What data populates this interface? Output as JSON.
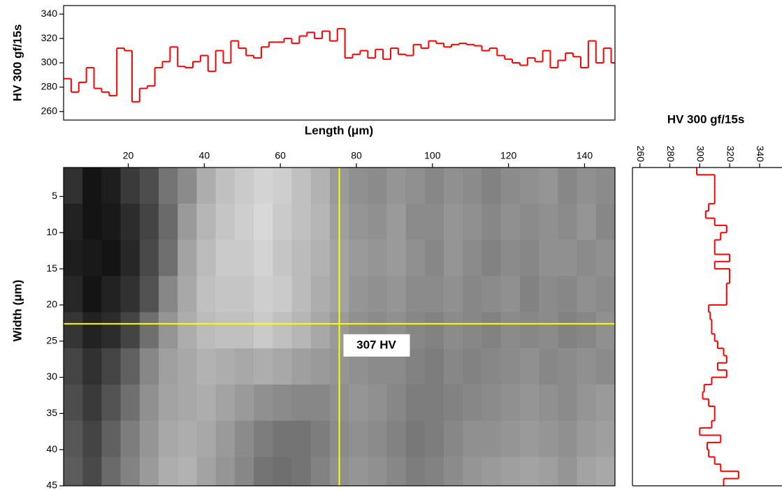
{
  "chart_data": [
    {
      "type": "line",
      "step": true,
      "ylabel": "HV 300 gf/15s",
      "color": "#ff0000",
      "x": [
        3,
        5,
        7,
        9,
        11,
        13,
        15,
        17,
        19,
        21,
        23,
        25,
        27,
        29,
        31,
        33,
        35,
        37,
        39,
        41,
        43,
        45,
        47,
        49,
        51,
        53,
        55,
        57,
        59,
        61,
        63,
        65,
        67,
        69,
        71,
        73,
        75,
        77,
        79,
        81,
        83,
        85,
        87,
        89,
        91,
        93,
        95,
        97,
        99,
        101,
        103,
        105,
        107,
        109,
        111,
        113,
        115,
        117,
        119,
        121,
        123,
        125,
        127,
        129,
        131,
        133,
        135,
        137,
        139,
        141,
        143,
        145,
        147
      ],
      "values": [
        287,
        276,
        284,
        296,
        279,
        276,
        273,
        312,
        310,
        268,
        279,
        281,
        296,
        301,
        313,
        297,
        296,
        301,
        306,
        293,
        310,
        300,
        318,
        312,
        306,
        304,
        313,
        317,
        317,
        320,
        316,
        322,
        325,
        320,
        326,
        318,
        328,
        304,
        307,
        310,
        304,
        311,
        303,
        312,
        307,
        306,
        315,
        312,
        318,
        316,
        313,
        315,
        316,
        315,
        314,
        310,
        312,
        306,
        303,
        300,
        298,
        304,
        301,
        310,
        296,
        302,
        308,
        305,
        296,
        318,
        300,
        312,
        300
      ],
      "xlim": [
        3,
        148
      ],
      "ylim": [
        253,
        347
      ],
      "yticks": [
        260,
        280,
        300,
        320,
        340
      ]
    },
    {
      "type": "heatmap",
      "xlabel": "Length (μm)",
      "ylabel": "Width (μm)",
      "xbins": [
        3,
        8,
        13,
        18,
        23,
        28,
        33,
        38,
        43,
        48,
        53,
        58,
        63,
        68,
        73,
        78,
        83,
        88,
        93,
        98,
        103,
        108,
        113,
        118,
        123,
        128,
        133,
        138,
        143,
        148
      ],
      "ybins": [
        1,
        6,
        11,
        16,
        21,
        26,
        31,
        36,
        41,
        45
      ],
      "zlim": [
        280,
        325
      ],
      "values": [
        [
          286,
          280,
          282,
          288,
          292,
          300,
          305,
          312,
          316,
          318,
          320,
          319,
          316,
          313,
          308,
          306,
          305,
          307,
          306,
          304,
          306,
          305,
          303,
          305,
          306,
          307,
          304,
          306,
          305
        ],
        [
          283,
          279,
          281,
          285,
          290,
          298,
          308,
          314,
          317,
          319,
          321,
          318,
          316,
          314,
          309,
          307,
          306,
          308,
          305,
          305,
          307,
          306,
          304,
          306,
          305,
          306,
          305,
          307,
          304
        ],
        [
          282,
          281,
          280,
          284,
          291,
          299,
          310,
          315,
          318,
          318,
          320,
          317,
          315,
          313,
          310,
          308,
          307,
          308,
          306,
          304,
          307,
          305,
          303,
          305,
          304,
          306,
          306,
          305,
          306
        ],
        [
          284,
          280,
          283,
          286,
          293,
          304,
          311,
          316,
          317,
          317,
          319,
          318,
          315,
          312,
          310,
          307,
          306,
          307,
          305,
          305,
          306,
          304,
          305,
          306,
          303,
          305,
          304,
          306,
          305
        ],
        [
          287,
          283,
          285,
          290,
          299,
          307,
          312,
          315,
          316,
          316,
          318,
          316,
          314,
          311,
          308,
          306,
          305,
          306,
          304,
          303,
          305,
          304,
          303,
          305,
          304,
          305,
          303,
          304,
          306
        ],
        [
          290,
          286,
          290,
          296,
          304,
          309,
          311,
          313,
          312,
          311,
          312,
          311,
          309,
          308,
          307,
          306,
          305,
          305,
          303,
          302,
          304,
          303,
          304,
          305,
          306,
          304,
          305,
          306,
          305
        ],
        [
          292,
          288,
          293,
          299,
          306,
          310,
          311,
          312,
          310,
          308,
          306,
          305,
          304,
          304,
          306,
          307,
          306,
          304,
          302,
          302,
          303,
          304,
          305,
          306,
          307,
          306,
          305,
          307,
          308
        ],
        [
          294,
          290,
          296,
          302,
          307,
          311,
          312,
          311,
          308,
          305,
          302,
          300,
          300,
          302,
          305,
          306,
          305,
          303,
          301,
          302,
          304,
          306,
          306,
          307,
          308,
          307,
          306,
          308,
          309
        ],
        [
          295,
          291,
          298,
          303,
          308,
          312,
          313,
          310,
          307,
          304,
          300,
          299,
          300,
          303,
          306,
          307,
          306,
          304,
          302,
          303,
          305,
          307,
          308,
          309,
          310,
          309,
          307,
          310,
          311
        ]
      ],
      "xlim": [
        3,
        148
      ],
      "ylim": [
        1,
        45
      ],
      "xticks": [
        20,
        40,
        60,
        80,
        100,
        120,
        140
      ],
      "yticks": [
        5,
        10,
        15,
        20,
        25,
        30,
        35,
        40,
        45
      ],
      "crosshair": {
        "x": 75.5,
        "y": 22.6,
        "color": "#ffff00",
        "annotation": "307 HV"
      }
    },
    {
      "type": "line",
      "step": true,
      "orientation": "vertical",
      "title": "HV 300 gf/15s",
      "color": "#ff0000",
      "y": [
        1,
        2,
        3,
        4,
        5,
        6,
        7,
        8,
        9,
        10,
        11,
        12,
        13,
        14,
        15,
        16,
        17,
        18,
        19,
        20,
        21,
        22,
        23,
        24,
        25,
        26,
        27,
        28,
        29,
        30,
        31,
        32,
        33,
        34,
        35,
        36,
        37,
        38,
        39,
        40,
        41,
        42,
        43,
        44
      ],
      "values": [
        298,
        310,
        310,
        310,
        310,
        306,
        304,
        310,
        318,
        314,
        310,
        310,
        320,
        310,
        320,
        320,
        318,
        318,
        318,
        306,
        307,
        308,
        308,
        310,
        312,
        316,
        318,
        312,
        318,
        308,
        303,
        302,
        306,
        310,
        310,
        308,
        300,
        314,
        305,
        306,
        310,
        314,
        326,
        316
      ],
      "xlim": [
        255,
        355
      ],
      "ylim": [
        1,
        45
      ],
      "xticks": [
        260,
        280,
        300,
        320,
        340
      ]
    }
  ]
}
